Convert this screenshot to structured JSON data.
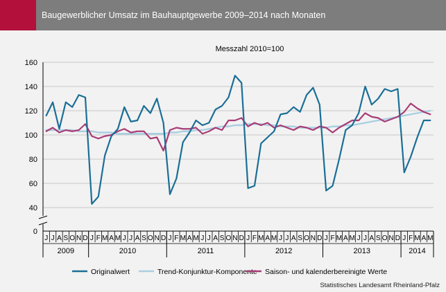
{
  "header": {
    "title": "Baugewerblicher Umsatz im Bauhauptgewerbe 2009–2014 nach Monaten",
    "accent_color": "#b3103b",
    "bar_color": "#7d7d7d"
  },
  "source": "Statistisches Landesamt Rheinland-Pfalz",
  "chart_data": {
    "type": "line",
    "subtitle": "Messzahl 2010=100",
    "ylim": [
      0,
      160
    ],
    "y_axis_break": [
      0,
      35
    ],
    "y_ticks": [
      0,
      40,
      60,
      80,
      100,
      120,
      140,
      160
    ],
    "grid": true,
    "legend_position": "bottom",
    "month_labels": [
      "J",
      "J",
      "A",
      "S",
      "O",
      "N",
      "D",
      "J",
      "F",
      "M",
      "A",
      "M",
      "J",
      "J",
      "A",
      "S",
      "O",
      "N",
      "D",
      "J",
      "F",
      "M",
      "A",
      "M",
      "J",
      "J",
      "A",
      "S",
      "O",
      "N",
      "D",
      "J",
      "F",
      "M",
      "A",
      "M",
      "J",
      "J",
      "A",
      "S",
      "O",
      "N",
      "D",
      "J",
      "F",
      "M",
      "A",
      "M",
      "J",
      "J",
      "A",
      "S",
      "O",
      "N",
      "D",
      "J",
      "F",
      "M",
      "A",
      "M"
    ],
    "years": [
      {
        "label": "2009",
        "months": 7
      },
      {
        "label": "2010",
        "months": 12
      },
      {
        "label": "2011",
        "months": 12
      },
      {
        "label": "2012",
        "months": 12
      },
      {
        "label": "2013",
        "months": 12
      },
      {
        "label": "2014",
        "months": 5
      }
    ],
    "series": [
      {
        "name": "Originalwert",
        "color": "#1a6e96",
        "width": 2.2,
        "values": [
          116,
          127,
          105,
          127,
          123,
          133,
          131,
          43,
          49,
          83,
          99,
          105,
          123,
          111,
          112,
          124,
          118,
          130,
          110,
          51,
          64,
          94,
          102,
          112,
          108,
          110,
          121,
          124,
          131,
          149,
          143,
          56,
          58,
          93,
          98,
          103,
          117,
          118,
          123,
          119,
          133,
          139,
          125,
          54,
          58,
          80,
          104,
          108,
          118,
          140,
          125,
          130,
          138,
          136,
          138,
          69,
          82,
          98,
          112,
          112
        ]
      },
      {
        "name": "Trend-Konjunktur-Komponente",
        "color": "#a9cfe1",
        "width": 2.4,
        "values": [
          104,
          104,
          104,
          104,
          104,
          103,
          103,
          103,
          102,
          102,
          102,
          101,
          101,
          101,
          101,
          101,
          101,
          101,
          101,
          102,
          102,
          103,
          103,
          104,
          104,
          105,
          106,
          107,
          107,
          108,
          108,
          109,
          109,
          109,
          108,
          108,
          107,
          107,
          107,
          106,
          106,
          106,
          106,
          106,
          107,
          107,
          108,
          108,
          109,
          110,
          111,
          112,
          113,
          114,
          115,
          116,
          117,
          118,
          119,
          120
        ]
      },
      {
        "name": "Saison- und kalenderbereinigte Werte",
        "color": "#a83c76",
        "width": 2.2,
        "values": [
          103,
          106,
          102,
          104,
          103,
          104,
          109,
          99,
          97,
          99,
          100,
          103,
          105,
          102,
          103,
          103,
          97,
          98,
          87,
          104,
          106,
          105,
          105,
          106,
          101,
          103,
          106,
          104,
          112,
          112,
          114,
          107,
          110,
          108,
          110,
          106,
          108,
          106,
          104,
          107,
          106,
          104,
          107,
          106,
          102,
          106,
          109,
          112,
          112,
          118,
          115,
          114,
          111,
          113,
          115,
          119,
          126,
          122,
          119,
          117
        ]
      }
    ]
  }
}
